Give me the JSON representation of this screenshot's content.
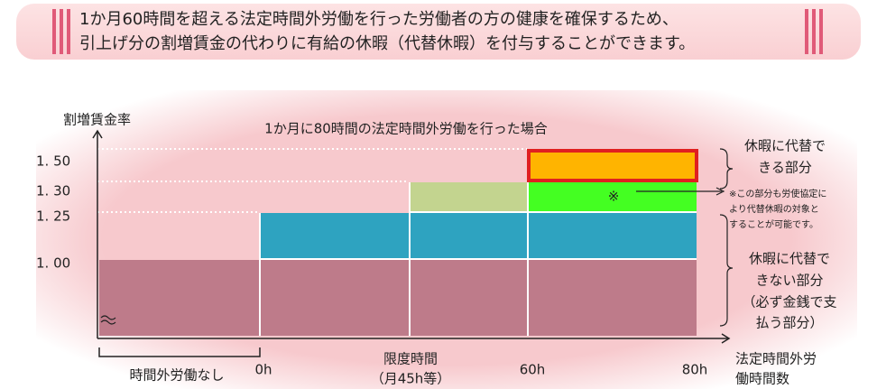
{
  "banner": {
    "lines": [
      "1か月60時間を超える法定時間外労働を行った労働者の方の健康を確保するため、",
      "引上げ分の割増賃金の代わりに有給の休暇（代替休暇）を付与することができます。"
    ]
  },
  "diagram": {
    "y_axis_label": "割増賃金率",
    "title": "1か月に80時間の法定時間外労働を行った場合",
    "y_labels": [
      "1. 50",
      "1. 30",
      "1. 25",
      "1. 00"
    ],
    "x_labels": [
      "0h",
      "60h",
      "80h"
    ],
    "limit_label": [
      "限度時間",
      "（月45h等）"
    ],
    "x_axis_label": [
      "法定時間外労",
      "働時間数"
    ],
    "no_overtime": "時間外労働なし",
    "mark": "※",
    "substitutable": [
      "休暇に代替で",
      "きる部分"
    ],
    "note": [
      "※この部分も労使協定に",
      "より代替休暇の対象と",
      "することが可能です。"
    ],
    "not_substitutable": [
      "休暇に代替で",
      "きない部分",
      "（必ず金銭で支",
      "払う部分）"
    ]
  }
}
